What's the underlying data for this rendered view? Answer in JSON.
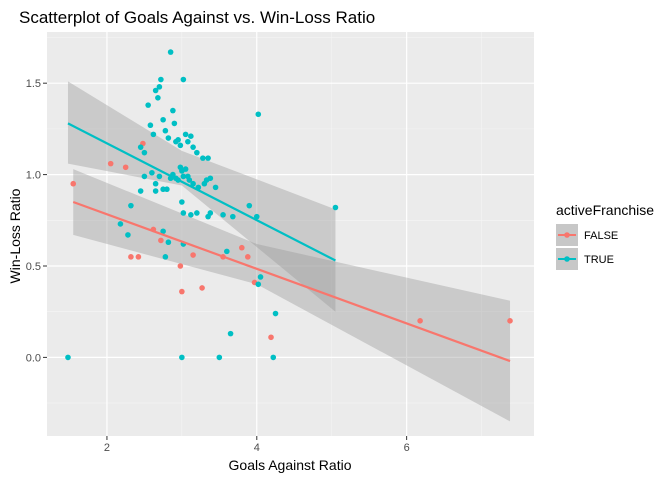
{
  "chart_data": {
    "type": "scatter",
    "title": "Scatterplot of Goals Against vs. Win-Loss Ratio",
    "xlabel": "Goals Against Ratio",
    "ylabel": "Win-Loss Ratio",
    "xlim": [
      1.2,
      7.7
    ],
    "ylim": [
      -0.43,
      1.78
    ],
    "x_ticks": [
      2,
      4,
      6
    ],
    "y_ticks": [
      0.0,
      0.5,
      1.0,
      1.5
    ],
    "x_tick_labels": [
      "2",
      "4",
      "6"
    ],
    "y_tick_labels": [
      "0.0",
      "0.5",
      "1.0",
      "1.5"
    ],
    "grid": true,
    "legend": {
      "title": "activeFranchise",
      "placement": "right",
      "entries": [
        "FALSE",
        "TRUE"
      ]
    },
    "series": [
      {
        "name": "FALSE",
        "color": "#F8766D",
        "points": [
          [
            1.55,
            0.95
          ],
          [
            2.05,
            1.06
          ],
          [
            2.25,
            1.04
          ],
          [
            2.48,
            1.17
          ],
          [
            2.62,
            0.7
          ],
          [
            2.72,
            0.64
          ],
          [
            2.98,
            0.5
          ],
          [
            3.0,
            0.36
          ],
          [
            3.27,
            0.38
          ],
          [
            3.15,
            0.56
          ],
          [
            2.42,
            0.55
          ],
          [
            2.32,
            0.55
          ],
          [
            3.55,
            0.55
          ],
          [
            3.8,
            0.6
          ],
          [
            3.88,
            0.55
          ],
          [
            3.97,
            0.41
          ],
          [
            4.19,
            0.11
          ],
          [
            6.18,
            0.2
          ],
          [
            7.38,
            0.2
          ]
        ],
        "fit": {
          "x": [
            1.55,
            7.38
          ],
          "y": [
            0.85,
            -0.02
          ]
        },
        "band": {
          "x": [
            1.55,
            4.0,
            7.38
          ],
          "upper": [
            1.03,
            0.62,
            0.31
          ],
          "lower": [
            0.67,
            0.4,
            -0.35
          ]
        }
      },
      {
        "name": "TRUE",
        "color": "#00BFC4",
        "points": [
          [
            1.48,
            0.0
          ],
          [
            2.18,
            0.73
          ],
          [
            2.28,
            0.67
          ],
          [
            2.32,
            0.83
          ],
          [
            2.45,
            1.15
          ],
          [
            2.5,
            1.12
          ],
          [
            2.55,
            1.38
          ],
          [
            2.58,
            1.27
          ],
          [
            2.62,
            1.22
          ],
          [
            2.65,
            1.46
          ],
          [
            2.7,
            1.48
          ],
          [
            2.72,
            1.52
          ],
          [
            2.68,
            1.42
          ],
          [
            2.75,
            1.3
          ],
          [
            2.78,
            1.24
          ],
          [
            2.82,
            1.2
          ],
          [
            2.85,
            1.67
          ],
          [
            2.88,
            1.35
          ],
          [
            2.9,
            1.28
          ],
          [
            2.92,
            1.18
          ],
          [
            2.95,
            1.19
          ],
          [
            2.98,
            1.16
          ],
          [
            3.02,
            1.52
          ],
          [
            3.05,
            1.22
          ],
          [
            3.08,
            1.18
          ],
          [
            3.12,
            1.21
          ],
          [
            3.15,
            1.15
          ],
          [
            3.2,
            1.12
          ],
          [
            3.28,
            1.09
          ],
          [
            3.35,
            1.09
          ],
          [
            2.5,
            0.99
          ],
          [
            2.6,
            1.01
          ],
          [
            2.65,
            0.95
          ],
          [
            2.7,
            0.99
          ],
          [
            2.75,
            0.92
          ],
          [
            2.8,
            0.92
          ],
          [
            2.85,
            0.98
          ],
          [
            2.88,
            1.0
          ],
          [
            2.92,
            0.98
          ],
          [
            2.95,
            0.97
          ],
          [
            2.98,
            1.04
          ],
          [
            3.0,
            1.02
          ],
          [
            3.02,
            0.99
          ],
          [
            3.05,
            1.03
          ],
          [
            3.08,
            0.99
          ],
          [
            3.1,
            0.97
          ],
          [
            3.15,
            0.95
          ],
          [
            3.22,
            0.93
          ],
          [
            3.3,
            0.95
          ],
          [
            3.33,
            0.97
          ],
          [
            3.38,
            0.98
          ],
          [
            3.45,
            0.93
          ],
          [
            2.45,
            0.91
          ],
          [
            2.65,
            0.91
          ],
          [
            3.0,
            0.85
          ],
          [
            3.02,
            0.79
          ],
          [
            3.12,
            0.78
          ],
          [
            3.2,
            0.79
          ],
          [
            3.35,
            0.77
          ],
          [
            3.38,
            0.79
          ],
          [
            3.55,
            0.78
          ],
          [
            3.68,
            0.77
          ],
          [
            3.9,
            0.83
          ],
          [
            4.0,
            0.77
          ],
          [
            4.02,
            1.33
          ],
          [
            5.05,
            0.82
          ],
          [
            2.75,
            0.69
          ],
          [
            2.78,
            0.55
          ],
          [
            2.82,
            0.63
          ],
          [
            3.02,
            0.62
          ],
          [
            3.6,
            0.58
          ],
          [
            3.65,
            0.13
          ],
          [
            3.5,
            0.0
          ],
          [
            3.0,
            0.0
          ],
          [
            4.22,
            0.0
          ],
          [
            4.05,
            0.44
          ],
          [
            4.02,
            0.4
          ],
          [
            4.25,
            0.24
          ]
        ],
        "fit": {
          "x": [
            1.48,
            5.05
          ],
          "y": [
            1.28,
            0.53
          ]
        },
        "band": {
          "x": [
            1.48,
            3.0,
            5.05
          ],
          "upper": [
            1.51,
            1.13,
            0.81
          ],
          "lower": [
            1.06,
            0.94,
            0.25
          ]
        }
      }
    ]
  }
}
